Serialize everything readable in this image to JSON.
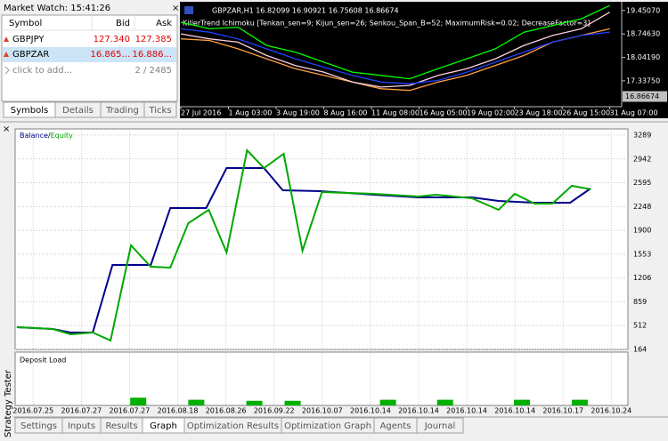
{
  "market_watch": {
    "title": "Market Watch: 15:41:26",
    "columns": [
      "Symbol",
      "Bid",
      "Ask"
    ],
    "rows": [
      [
        "GBPJPY",
        "127.340",
        "127.385"
      ],
      [
        "GBPZAR",
        "16.865...",
        "16.886..."
      ]
    ],
    "add_row": "click to add...",
    "count": "2 / 2485",
    "tabs": [
      "Symbols",
      "Details",
      "Trading",
      "Ticks"
    ],
    "active_tab": 0
  },
  "price_chart": {
    "type": "line",
    "title": "GBPZAR,H1  16.82099 16.90921 16.75608 16.86674",
    "subtitle": "KillerTrend Ichimoku [Tenkan_sen=9; Kijun_sen=26; Senkou_Span_B=52; MaximumRisk=0.02; DecreaseFactor=3]",
    "x": [
      0,
      0.6,
      1.2,
      1.8,
      2.4,
      3,
      3.6,
      4.2,
      4.8,
      5.4,
      6,
      6.6,
      7.2,
      7.8,
      8.4,
      9
    ],
    "xlim": [
      0,
      9.25
    ],
    "xticks": [
      {
        "value": 0,
        "label": "27 Jul 2016"
      },
      {
        "value": 1,
        "label": "1 Aug 03:00"
      },
      {
        "value": 2,
        "label": "3 Aug 19:00"
      },
      {
        "value": 3,
        "label": "8 Aug 16:00"
      },
      {
        "value": 4,
        "label": "11 Aug 08:00"
      },
      {
        "value": 5,
        "label": "16 Aug 05:00"
      },
      {
        "value": 6,
        "label": "19 Aug 02:00"
      },
      {
        "value": 7,
        "label": "23 Aug 18:00"
      },
      {
        "value": 8,
        "label": "26 Aug 15:00"
      },
      {
        "value": 9,
        "label": "31 Aug 07:00"
      }
    ],
    "ylim": [
      16.56,
      19.66
    ],
    "yticks": [
      {
        "value": 19.4507,
        "label": "19.45070"
      },
      {
        "value": 18.7463,
        "label": "18.74630"
      },
      {
        "value": 18.0419,
        "label": "18.04190"
      },
      {
        "value": 17.3375,
        "label": "17.33750"
      }
    ],
    "last_price": {
      "value": 16.86674,
      "label": "16.86674"
    },
    "series": [
      {
        "color": "#00ff00",
        "values": [
          19.1,
          18.9,
          18.95,
          18.4,
          18.2,
          17.9,
          17.6,
          17.5,
          17.4,
          17.7,
          18.0,
          18.3,
          18.8,
          19.0,
          19.2,
          19.6
        ]
      },
      {
        "color": "#ffa040",
        "values": [
          18.6,
          18.55,
          18.3,
          18.0,
          17.7,
          17.5,
          17.3,
          17.1,
          17.05,
          17.3,
          17.5,
          17.8,
          18.1,
          18.5,
          18.7,
          18.9
        ]
      },
      {
        "color": "#ffd0e0",
        "values": [
          18.75,
          18.6,
          18.5,
          18.1,
          17.8,
          17.6,
          17.3,
          17.15,
          17.2,
          17.5,
          17.7,
          18.0,
          18.4,
          18.7,
          18.9,
          19.4
        ]
      },
      {
        "color": "#2040ff",
        "values": [
          18.9,
          18.8,
          18.6,
          18.3,
          18.0,
          17.75,
          17.5,
          17.3,
          17.25,
          17.35,
          17.6,
          17.9,
          18.2,
          18.5,
          18.7,
          18.8
        ]
      }
    ]
  },
  "tester": {
    "label": "Strategy Tester",
    "tabs": [
      "Settings",
      "Inputs",
      "Results",
      "Graph",
      "Optimization Results",
      "Optimization Graph",
      "Agents",
      "Journal"
    ],
    "active_tab": 3,
    "graph": {
      "type": "line",
      "legend_separator": "/",
      "xlim": [
        0.25,
        25.69
      ],
      "xticks": [
        {
          "value": 1,
          "label": "2016.07.25"
        },
        {
          "value": 3,
          "label": "2016.07.27"
        },
        {
          "value": 5,
          "label": "2016.07.27"
        },
        {
          "value": 7,
          "label": "2016.08.18"
        },
        {
          "value": 9,
          "label": "2016.08.26"
        },
        {
          "value": 11,
          "label": "2016.09.22"
        },
        {
          "value": 13,
          "label": "2016.10.07"
        },
        {
          "value": 15,
          "label": "2016.10.14"
        },
        {
          "value": 17,
          "label": "2016.10.14"
        },
        {
          "value": 19,
          "label": "2016.10.14"
        },
        {
          "value": 21,
          "label": "2016.10.14"
        },
        {
          "value": 23,
          "label": "2016.10.17"
        },
        {
          "value": 25,
          "label": "2016.10.24"
        }
      ],
      "ylim": [
        164,
        3380
      ],
      "yticks": [
        3289,
        2942,
        2595,
        2248,
        1900,
        1553,
        1206,
        859,
        512,
        164
      ],
      "grid": true,
      "series": [
        {
          "name": "Balance",
          "color": "#00008b",
          "x": [
            0.32,
            1.81,
            2.55,
            3.47,
            4.29,
            5.88,
            6.69,
            8.18,
            9.03,
            10.58,
            11.36,
            12.92,
            15.14,
            16.99,
            19.21,
            20.32,
            21.81,
            23.29,
            24.14
          ],
          "values": [
            488,
            462,
            410,
            410,
            1396,
            1396,
            2226,
            2226,
            2809,
            2809,
            2485,
            2472,
            2420,
            2381,
            2381,
            2330,
            2304,
            2304,
            2511
          ]
        },
        {
          "name": "Equity",
          "color": "#00a800",
          "x": [
            0.32,
            1.81,
            2.55,
            3.47,
            4.21,
            5.06,
            5.88,
            6.69,
            7.44,
            8.29,
            9.03,
            9.88,
            10.58,
            11.4,
            12.18,
            12.99,
            15.14,
            16.99,
            17.73,
            19.21,
            20.32,
            20.99,
            21.81,
            22.55,
            23.36,
            24.14
          ],
          "values": [
            488,
            462,
            384,
            410,
            294,
            1681,
            1370,
            1357,
            2005,
            2200,
            1577,
            3068,
            2809,
            3017,
            1603,
            2459,
            2433,
            2394,
            2420,
            2368,
            2200,
            2433,
            2291,
            2291,
            2550,
            2499
          ]
        }
      ]
    },
    "deposit_load": {
      "type": "bar",
      "title": "Deposit Load",
      "color": "#00b000",
      "ylim": [
        0,
        100
      ],
      "x": [
        5.36,
        7.77,
        10.18,
        11.77,
        15.73,
        18.1,
        21.29,
        23.69
      ],
      "values": [
        15,
        11,
        9,
        9,
        11,
        11,
        11,
        11
      ]
    }
  }
}
